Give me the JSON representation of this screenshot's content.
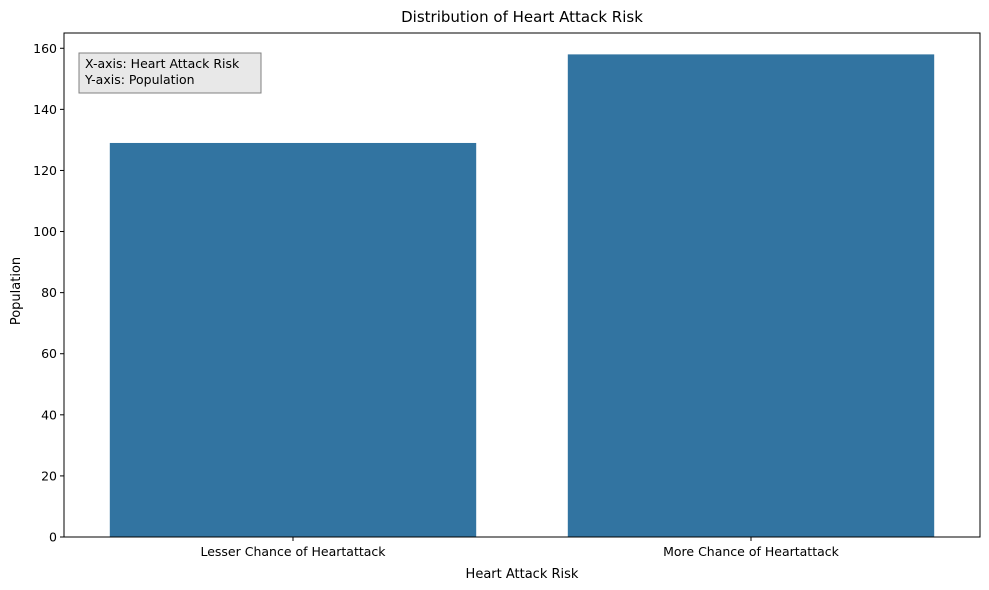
{
  "chart_data": {
    "type": "bar",
    "title": "Distribution of Heart Attack Risk",
    "xlabel": "Heart Attack Risk",
    "ylabel": "Population",
    "categories": [
      "Lesser Chance of Heartattack",
      "More Chance of Heartattack"
    ],
    "values": [
      129,
      158
    ],
    "ylim": [
      0,
      165
    ],
    "yticks": [
      0,
      20,
      40,
      60,
      80,
      100,
      120,
      140,
      160
    ],
    "bar_color": "#3274a1",
    "grid": false,
    "annotation": {
      "lines": [
        "X-axis: Heart Attack Risk",
        "Y-axis: Population"
      ],
      "placement": "top-left",
      "background": "#e8e8e8",
      "border": "#808080"
    }
  }
}
